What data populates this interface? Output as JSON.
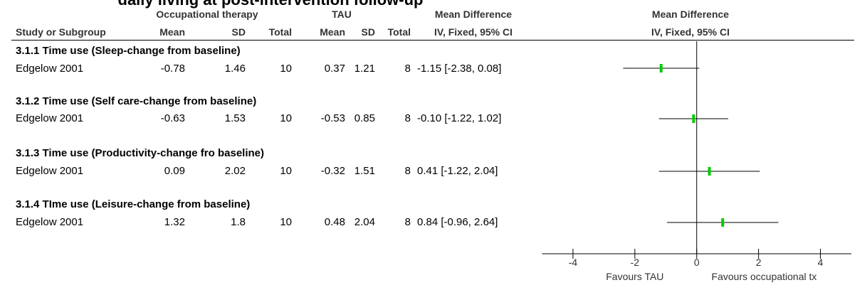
{
  "title": "daily living at post-intervention follow-up",
  "headers": {
    "group_ot": "Occupational therapy",
    "group_tau": "TAU",
    "effect_top": "Mean Difference",
    "effect_bottom": "IV, Fixed, 95% CI",
    "plot_top": "Mean Difference",
    "plot_bottom": "IV, Fixed, 95% CI",
    "study": "Study or Subgroup",
    "mean": "Mean",
    "sd": "SD",
    "total": "Total"
  },
  "subgroups": [
    {
      "title": "3.1.1 Time use (Sleep-change from baseline)",
      "rows": [
        {
          "study": "Edgelow 2001",
          "ot_mean": "-0.78",
          "ot_sd": "1.46",
          "ot_total": "10",
          "tau_mean": "0.37",
          "tau_sd": "1.21",
          "tau_total": "8",
          "md_text": "-1.15 [-2.38, 0.08]"
        }
      ]
    },
    {
      "title": "3.1.2 Time use (Self care-change from baseline)",
      "rows": [
        {
          "study": "Edgelow 2001",
          "ot_mean": "-0.63",
          "ot_sd": "1.53",
          "ot_total": "10",
          "tau_mean": "-0.53",
          "tau_sd": "0.85",
          "tau_total": "8",
          "md_text": "-0.10 [-1.22, 1.02]"
        }
      ]
    },
    {
      "title": "3.1.3 Time use (Productivity-change fro baseline)",
      "rows": [
        {
          "study": "Edgelow 2001",
          "ot_mean": "0.09",
          "ot_sd": "2.02",
          "ot_total": "10",
          "tau_mean": "-0.32",
          "tau_sd": "1.51",
          "tau_total": "8",
          "md_text": "0.41 [-1.22, 2.04]"
        }
      ]
    },
    {
      "title": "3.1.4 TIme use (Leisure-change from baseline)",
      "rows": [
        {
          "study": "Edgelow 2001",
          "ot_mean": "1.32",
          "ot_sd": "1.8",
          "ot_total": "10",
          "tau_mean": "0.48",
          "tau_sd": "2.04",
          "tau_total": "8",
          "md_text": "0.84 [-0.96, 2.64]"
        }
      ]
    }
  ],
  "chart_data": {
    "type": "forest",
    "xlim": [
      -5,
      5
    ],
    "xticks": [
      -4,
      -2,
      0,
      2,
      4
    ],
    "xtick_labels": [
      "-4",
      "-2",
      "0",
      "2",
      "4"
    ],
    "favours_left": "Favours TAU",
    "favours_right": "Favours occupational tx",
    "marker_color": "#00cc00",
    "points": [
      {
        "md": -1.15,
        "lower": -2.38,
        "upper": 0.08
      },
      {
        "md": -0.1,
        "lower": -1.22,
        "upper": 1.02
      },
      {
        "md": 0.41,
        "lower": -1.22,
        "upper": 2.04
      },
      {
        "md": 0.84,
        "lower": -0.96,
        "upper": 2.64
      }
    ]
  }
}
